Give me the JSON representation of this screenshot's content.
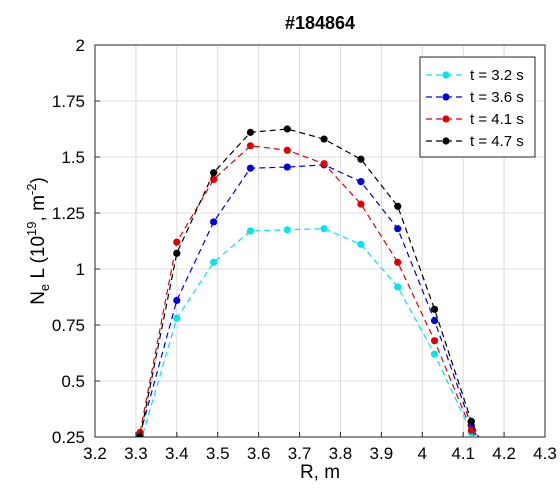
{
  "chart_data": {
    "type": "line",
    "title": "#184864",
    "xlabel": "R, m",
    "ylabel_parts": {
      "main": "N",
      "sub": "e",
      "mid": " L (10",
      "sup1": "19",
      "mid2": ", m",
      "sup2": "-2",
      "end": ")"
    },
    "xlim": [
      3.2,
      4.3
    ],
    "ylim": [
      0.25,
      2
    ],
    "xticks": [
      "3.2",
      "3.3",
      "3.4",
      "3.5",
      "3.6",
      "3.7",
      "3.8",
      "3.9",
      "4",
      "4.1",
      "4.2",
      "4.3"
    ],
    "yticks": [
      "0.25",
      "0.5",
      "0.75",
      "1",
      "1.25",
      "1.5",
      "1.75",
      "2"
    ],
    "grid": true,
    "legend_position": "top-right",
    "x": [
      3.31,
      3.4,
      3.49,
      3.58,
      3.67,
      3.76,
      3.85,
      3.94,
      4.03,
      4.12,
      4.14
    ],
    "series": [
      {
        "name": "t = 3.2 s",
        "color": "#00e5ee",
        "values": [
          0.22,
          0.78,
          1.03,
          1.17,
          1.175,
          1.18,
          1.11,
          0.92,
          0.62,
          0.27,
          0.22
        ]
      },
      {
        "name": "t = 3.6 s",
        "color": "#0000e0",
        "values": [
          0.26,
          0.86,
          1.21,
          1.45,
          1.455,
          1.465,
          1.39,
          1.18,
          0.77,
          0.3,
          0.23
        ]
      },
      {
        "name": "t = 4.1 s",
        "color": "#e00000",
        "values": [
          0.27,
          1.12,
          1.4,
          1.55,
          1.53,
          1.47,
          1.29,
          1.03,
          0.68,
          0.28,
          0.22
        ]
      },
      {
        "name": "t = 4.7 s",
        "color": "#000000",
        "values": [
          0.25,
          1.07,
          1.43,
          1.61,
          1.625,
          1.58,
          1.49,
          1.28,
          0.82,
          0.32,
          0.24
        ]
      }
    ]
  }
}
